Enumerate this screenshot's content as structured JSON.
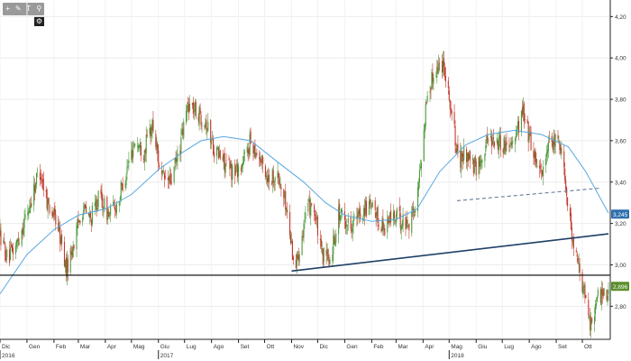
{
  "toolbar": {
    "tools": [
      {
        "icon": "crosshair-icon",
        "glyph": "+"
      },
      {
        "icon": "pencil-icon",
        "glyph": "✎"
      },
      {
        "icon": "text-icon",
        "glyph": "T"
      },
      {
        "icon": "magnifier-icon",
        "glyph": "⚲"
      }
    ],
    "settings_icon": "gear-icon",
    "settings_glyph": "⚙"
  },
  "chart_data": {
    "type": "candlestick",
    "title": "",
    "xlabel": "",
    "ylabel": "",
    "x_range": [
      "2016-12-01",
      "2018-10-31"
    ],
    "ylim": [
      2.64,
      4.28
    ],
    "y_ticks": [
      "4,20",
      "4,00",
      "3,80",
      "3,60",
      "3,40",
      "3,20",
      "3,00",
      "2,80"
    ],
    "y_tick_values": [
      4.2,
      4.0,
      3.8,
      3.6,
      3.4,
      3.2,
      3.0,
      2.8
    ],
    "x_ticks": [
      {
        "label": "Dic",
        "date": "2016-12-01"
      },
      {
        "label": "Gen",
        "date": "2017-01-01"
      },
      {
        "label": "Feb",
        "date": "2017-02-01"
      },
      {
        "label": "Mar",
        "date": "2017-03-01"
      },
      {
        "label": "Apr",
        "date": "2017-04-01"
      },
      {
        "label": "Mag",
        "date": "2017-05-01"
      },
      {
        "label": "Giu",
        "date": "2017-06-01"
      },
      {
        "label": "Lug",
        "date": "2017-07-01"
      },
      {
        "label": "Ago",
        "date": "2017-08-01"
      },
      {
        "label": "Set",
        "date": "2017-09-01"
      },
      {
        "label": "Ott",
        "date": "2017-10-01"
      },
      {
        "label": "Nov",
        "date": "2017-11-01"
      },
      {
        "label": "Dic",
        "date": "2017-12-01"
      },
      {
        "label": "Gen",
        "date": "2018-01-01"
      },
      {
        "label": "Feb",
        "date": "2018-02-01"
      },
      {
        "label": "Mar",
        "date": "2018-03-01"
      },
      {
        "label": "Apr",
        "date": "2018-04-01"
      },
      {
        "label": "Mag",
        "date": "2018-05-01"
      },
      {
        "label": "Giu",
        "date": "2018-06-01"
      },
      {
        "label": "Lug",
        "date": "2018-07-01"
      },
      {
        "label": "Ago",
        "date": "2018-08-01"
      },
      {
        "label": "Set",
        "date": "2018-09-01"
      },
      {
        "label": "Ott",
        "date": "2018-10-01"
      }
    ],
    "year_labels": [
      {
        "label": "2016",
        "date": "2016-12-01"
      },
      {
        "label": "2017",
        "date": "2017-06-01"
      },
      {
        "label": "2018",
        "date": "2018-05-01"
      }
    ],
    "price_path": [
      [
        "2016-12-01",
        3.15
      ],
      [
        "2016-12-10",
        3.02
      ],
      [
        "2016-12-20",
        3.1
      ],
      [
        "2017-01-05",
        3.3
      ],
      [
        "2017-01-15",
        3.47
      ],
      [
        "2017-01-25",
        3.3
      ],
      [
        "2017-02-05",
        3.2
      ],
      [
        "2017-02-15",
        2.98
      ],
      [
        "2017-02-25",
        3.12
      ],
      [
        "2017-03-05",
        3.28
      ],
      [
        "2017-03-15",
        3.22
      ],
      [
        "2017-03-25",
        3.33
      ],
      [
        "2017-04-05",
        3.24
      ],
      [
        "2017-04-15",
        3.3
      ],
      [
        "2017-04-25",
        3.45
      ],
      [
        "2017-05-05",
        3.6
      ],
      [
        "2017-05-15",
        3.55
      ],
      [
        "2017-05-25",
        3.68
      ],
      [
        "2017-06-05",
        3.42
      ],
      [
        "2017-06-15",
        3.4
      ],
      [
        "2017-06-25",
        3.55
      ],
      [
        "2017-07-05",
        3.78
      ],
      [
        "2017-07-15",
        3.74
      ],
      [
        "2017-07-25",
        3.7
      ],
      [
        "2017-08-05",
        3.55
      ],
      [
        "2017-08-15",
        3.5
      ],
      [
        "2017-08-25",
        3.45
      ],
      [
        "2017-09-05",
        3.48
      ],
      [
        "2017-09-15",
        3.6
      ],
      [
        "2017-09-25",
        3.52
      ],
      [
        "2017-10-05",
        3.42
      ],
      [
        "2017-10-15",
        3.44
      ],
      [
        "2017-10-25",
        3.3
      ],
      [
        "2017-11-05",
        2.98
      ],
      [
        "2017-11-15",
        3.2
      ],
      [
        "2017-11-25",
        3.32
      ],
      [
        "2017-12-05",
        3.05
      ],
      [
        "2017-12-15",
        3.02
      ],
      [
        "2017-12-25",
        3.25
      ],
      [
        "2018-01-05",
        3.2
      ],
      [
        "2018-01-15",
        3.22
      ],
      [
        "2018-01-25",
        3.28
      ],
      [
        "2018-02-05",
        3.25
      ],
      [
        "2018-02-15",
        3.18
      ],
      [
        "2018-02-25",
        3.24
      ],
      [
        "2018-03-05",
        3.22
      ],
      [
        "2018-03-15",
        3.2
      ],
      [
        "2018-03-25",
        3.3
      ],
      [
        "2018-04-05",
        3.8
      ],
      [
        "2018-04-15",
        3.95
      ],
      [
        "2018-04-25",
        3.98
      ],
      [
        "2018-05-05",
        3.7
      ],
      [
        "2018-05-12",
        3.48
      ],
      [
        "2018-05-20",
        3.55
      ],
      [
        "2018-06-01",
        3.45
      ],
      [
        "2018-06-15",
        3.62
      ],
      [
        "2018-06-25",
        3.6
      ],
      [
        "2018-07-05",
        3.58
      ],
      [
        "2018-07-15",
        3.62
      ],
      [
        "2018-07-25",
        3.74
      ],
      [
        "2018-08-05",
        3.55
      ],
      [
        "2018-08-15",
        3.45
      ],
      [
        "2018-08-25",
        3.58
      ],
      [
        "2018-09-05",
        3.6
      ],
      [
        "2018-09-12",
        3.4
      ],
      [
        "2018-09-20",
        3.1
      ],
      [
        "2018-10-01",
        2.9
      ],
      [
        "2018-10-10",
        2.72
      ],
      [
        "2018-10-20",
        2.85
      ],
      [
        "2018-10-31",
        2.88
      ]
    ],
    "moving_average": [
      [
        "2016-12-01",
        2.86
      ],
      [
        "2017-01-01",
        3.05
      ],
      [
        "2017-02-01",
        3.17
      ],
      [
        "2017-03-01",
        3.24
      ],
      [
        "2017-04-01",
        3.27
      ],
      [
        "2017-05-01",
        3.34
      ],
      [
        "2017-06-01",
        3.46
      ],
      [
        "2017-07-01",
        3.55
      ],
      [
        "2017-07-20",
        3.6
      ],
      [
        "2017-08-15",
        3.62
      ],
      [
        "2017-09-15",
        3.6
      ],
      [
        "2017-10-15",
        3.5
      ],
      [
        "2017-11-15",
        3.4
      ],
      [
        "2017-12-10",
        3.3
      ],
      [
        "2018-01-01",
        3.24
      ],
      [
        "2018-02-01",
        3.21
      ],
      [
        "2018-03-01",
        3.22
      ],
      [
        "2018-03-25",
        3.27
      ],
      [
        "2018-04-20",
        3.45
      ],
      [
        "2018-05-20",
        3.58
      ],
      [
        "2018-06-15",
        3.63
      ],
      [
        "2018-07-15",
        3.65
      ],
      [
        "2018-08-15",
        3.63
      ],
      [
        "2018-09-15",
        3.57
      ],
      [
        "2018-10-05",
        3.45
      ],
      [
        "2018-10-31",
        3.25
      ]
    ],
    "support_line": {
      "value": 2.95
    },
    "trendline": {
      "from": [
        "2017-11-01",
        2.97
      ],
      "to": [
        "2018-10-31",
        3.15
      ]
    },
    "dashed_trendline": {
      "from": [
        "2018-05-10",
        3.31
      ],
      "to": [
        "2018-10-20",
        3.37
      ]
    },
    "price_tags": [
      {
        "label": "3,245",
        "value": 3.245,
        "color": "#2f6fae"
      },
      {
        "label": "2,896",
        "value": 2.896,
        "color": "#5a8e2a"
      }
    ],
    "colors": {
      "up": "#4a9a3a",
      "down": "#c0392b",
      "moving_average": "#5aa9e0",
      "support": "#000000",
      "trendline": "#1f3f66",
      "dashed": "#6a7a99"
    }
  }
}
